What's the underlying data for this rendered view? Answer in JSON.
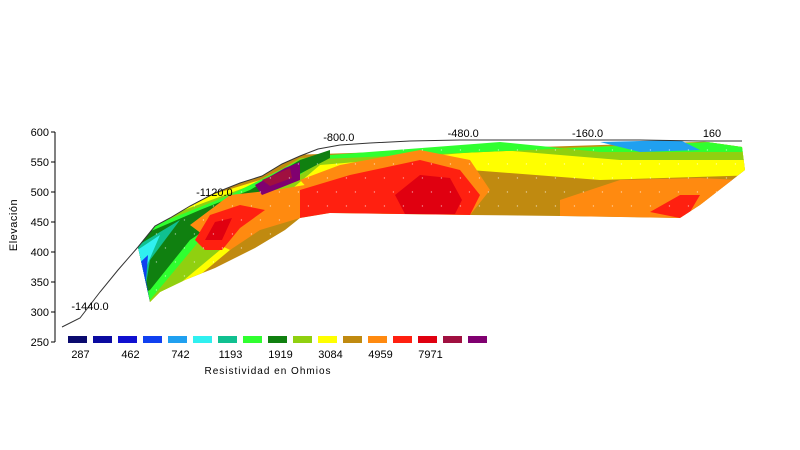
{
  "chart_data": {
    "type": "heatmap",
    "title": "",
    "ylabel": "Elevación",
    "legend_title": "Resistividad en Ohmios",
    "ylim": [
      250,
      600
    ],
    "y_ticks": [
      "600",
      "550",
      "500",
      "450",
      "400",
      "350",
      "300",
      "250"
    ],
    "station_labels": [
      {
        "text": "-1440.0",
        "x": -1440,
        "y": 300
      },
      {
        "text": "-1120.0",
        "x": -1120,
        "y": 490
      },
      {
        "text": "-800.0",
        "x": -800,
        "y": 582
      },
      {
        "text": "-480.0",
        "x": -480,
        "y": 588
      },
      {
        "text": "-160.0",
        "x": -160,
        "y": 588
      },
      {
        "text": "160",
        "x": 160,
        "y": 588
      }
    ],
    "legend_colors": [
      "#0a0a6e",
      "#0a0aa0",
      "#1010d0",
      "#1040f0",
      "#20a0f0",
      "#30f0f0",
      "#10c090",
      "#30ff30",
      "#108010",
      "#90d010",
      "#ffff00",
      "#c08a10",
      "#ff8a10",
      "#ff2010",
      "#e00010",
      "#a01040",
      "#800070"
    ],
    "legend_labels": [
      "287",
      "462",
      "742",
      "1193",
      "1919",
      "3084",
      "4959",
      "7971"
    ],
    "legend_label_index": [
      0,
      2,
      4,
      6,
      8,
      10,
      12,
      14
    ]
  }
}
